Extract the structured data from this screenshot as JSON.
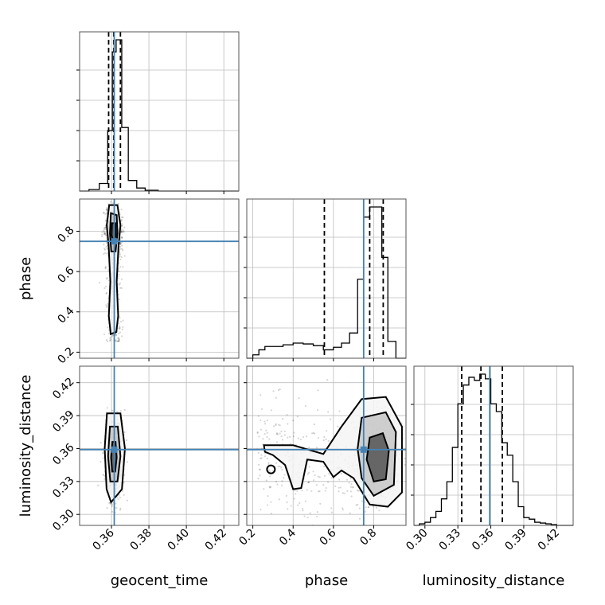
{
  "chart_data": {
    "type": "corner",
    "parameters": [
      "geocent_time",
      "phase",
      "luminosity_distance"
    ],
    "colors": {
      "truth": "#4682b4",
      "contour": "#000000",
      "grid": "#bdbdbd"
    },
    "ranges": {
      "geocent_time": [
        0.343,
        0.428
      ],
      "phase": [
        0.17,
        0.96
      ],
      "luminosity_distance": [
        0.29,
        0.435
      ]
    },
    "ticks": {
      "geocent_time": [
        "0.36",
        "0.38",
        "0.40",
        "0.42"
      ],
      "phase": [
        "0.2",
        "0.4",
        "0.6",
        "0.8"
      ],
      "luminosity_distance": [
        "0.30",
        "0.33",
        "0.36",
        "0.39",
        "0.42"
      ]
    },
    "truths": {
      "geocent_time": 0.3615,
      "phase": 0.75,
      "luminosity_distance": 0.359
    },
    "quantiles": {
      "geocent_time": [
        0.3585,
        0.3612,
        0.3648
      ],
      "phase": [
        0.555,
        0.78,
        0.847
      ],
      "luminosity_distance": [
        0.3335,
        0.351,
        0.3705
      ]
    },
    "histograms": {
      "geocent_time": {
        "edges": [
          0.343,
          0.348,
          0.3535,
          0.358,
          0.3605,
          0.3625,
          0.3655,
          0.369,
          0.3735,
          0.378,
          0.385,
          0.428
        ],
        "counts": [
          0,
          0.01,
          0.05,
          0.4,
          0.92,
          1.0,
          0.42,
          0.07,
          0.02,
          0.005,
          0
        ]
      },
      "phase": {
        "edges": [
          0.17,
          0.2,
          0.23,
          0.26,
          0.3,
          0.35,
          0.4,
          0.45,
          0.5,
          0.55,
          0.6,
          0.64,
          0.68,
          0.72,
          0.75,
          0.78,
          0.8,
          0.84,
          0.87,
          0.91,
          0.96
        ],
        "counts": [
          0,
          0.02,
          0.05,
          0.07,
          0.07,
          0.08,
          0.09,
          0.085,
          0.075,
          0.05,
          0.065,
          0.09,
          0.15,
          0.47,
          0.84,
          0.9,
          0.9,
          0.6,
          0.1,
          0
        ]
      },
      "luminosity_distance": {
        "edges": [
          0.29,
          0.295,
          0.3,
          0.305,
          0.31,
          0.315,
          0.32,
          0.325,
          0.33,
          0.335,
          0.34,
          0.345,
          0.35,
          0.355,
          0.36,
          0.365,
          0.37,
          0.375,
          0.38,
          0.385,
          0.39,
          0.395,
          0.4,
          0.405,
          0.41,
          0.415,
          0.42,
          0.435
        ],
        "counts": [
          0,
          0.01,
          0.02,
          0.05,
          0.09,
          0.17,
          0.28,
          0.5,
          0.78,
          0.9,
          0.95,
          0.93,
          0.97,
          0.94,
          0.78,
          0.73,
          0.53,
          0.45,
          0.28,
          0.12,
          0.05,
          0.04,
          0.02,
          0.015,
          0.01,
          0.005,
          0
        ]
      }
    },
    "contours": {
      "phase_vs_geocent_time": [
        [
          [
            0.3588,
            0.93
          ],
          [
            0.3632,
            0.93
          ],
          [
            0.3648,
            0.83
          ],
          [
            0.3638,
            0.73
          ],
          [
            0.3628,
            0.55
          ],
          [
            0.3636,
            0.38
          ],
          [
            0.3626,
            0.3
          ],
          [
            0.3596,
            0.29
          ],
          [
            0.3586,
            0.38
          ],
          [
            0.3594,
            0.55
          ],
          [
            0.3585,
            0.73
          ],
          [
            0.3575,
            0.83
          ]
        ],
        [
          [
            0.3597,
            0.89
          ],
          [
            0.3628,
            0.88
          ],
          [
            0.3632,
            0.79
          ],
          [
            0.3622,
            0.7
          ],
          [
            0.3599,
            0.7
          ],
          [
            0.3592,
            0.79
          ]
        ],
        [
          [
            0.3603,
            0.84
          ],
          [
            0.3622,
            0.84
          ],
          [
            0.3623,
            0.78
          ],
          [
            0.3612,
            0.74
          ],
          [
            0.3601,
            0.78
          ]
        ]
      ],
      "luminosity_distance_vs_geocent_time": [
        [
          [
            0.3576,
            0.392
          ],
          [
            0.3648,
            0.392
          ],
          [
            0.3672,
            0.36
          ],
          [
            0.3656,
            0.323
          ],
          [
            0.3598,
            0.311
          ],
          [
            0.3574,
            0.323
          ],
          [
            0.3564,
            0.36
          ]
        ],
        [
          [
            0.3592,
            0.38
          ],
          [
            0.3634,
            0.38
          ],
          [
            0.3648,
            0.353
          ],
          [
            0.3632,
            0.33
          ],
          [
            0.3594,
            0.33
          ],
          [
            0.3582,
            0.353
          ]
        ],
        [
          [
            0.3605,
            0.366
          ],
          [
            0.3622,
            0.366
          ],
          [
            0.3628,
            0.352
          ],
          [
            0.362,
            0.339
          ],
          [
            0.3604,
            0.339
          ],
          [
            0.3598,
            0.352
          ]
        ]
      ],
      "luminosity_distance_vs_phase": [
        [
          [
            0.255,
            0.363
          ],
          [
            0.4,
            0.363
          ],
          [
            0.55,
            0.355
          ],
          [
            0.64,
            0.38
          ],
          [
            0.74,
            0.405
          ],
          [
            0.86,
            0.407
          ],
          [
            0.94,
            0.38
          ],
          [
            0.94,
            0.32
          ],
          [
            0.87,
            0.307
          ],
          [
            0.78,
            0.309
          ],
          [
            0.7,
            0.333
          ],
          [
            0.64,
            0.34
          ],
          [
            0.6,
            0.334
          ],
          [
            0.55,
            0.348
          ],
          [
            0.47,
            0.35
          ],
          [
            0.44,
            0.324
          ],
          [
            0.4,
            0.323
          ],
          [
            0.36,
            0.345
          ],
          [
            0.3,
            0.354
          ],
          [
            0.26,
            0.357
          ]
        ],
        [
          [
            0.74,
            0.388
          ],
          [
            0.86,
            0.393
          ],
          [
            0.91,
            0.375
          ],
          [
            0.9,
            0.327
          ],
          [
            0.8,
            0.317
          ],
          [
            0.74,
            0.333
          ],
          [
            0.72,
            0.36
          ]
        ],
        [
          [
            0.78,
            0.37
          ],
          [
            0.845,
            0.374
          ],
          [
            0.875,
            0.358
          ],
          [
            0.86,
            0.332
          ],
          [
            0.8,
            0.33
          ],
          [
            0.765,
            0.35
          ]
        ]
      ]
    },
    "axis_labels": {
      "x": [
        "geocent_time",
        "phase",
        "luminosity_distance"
      ],
      "y": [
        "phase",
        "luminosity_distance"
      ]
    }
  }
}
